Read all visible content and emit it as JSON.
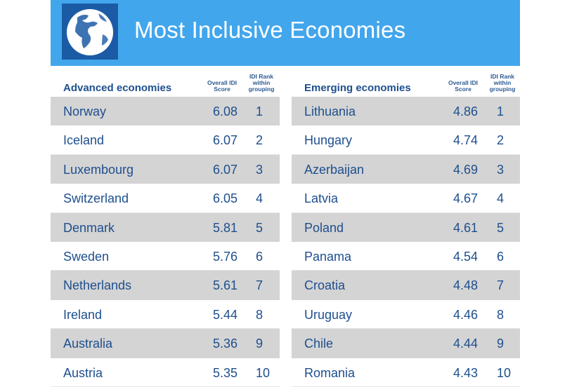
{
  "header": {
    "title": "Most Inclusive Economies",
    "icon": "globe-icon",
    "banner_color": "#42a6ec",
    "icon_bg_color": "#1b5ba6"
  },
  "advanced": {
    "heading": "Advanced economies",
    "col_score": "Overall IDI Score",
    "col_rank": "IDI Rank within grouping",
    "rows": [
      {
        "name": "Norway",
        "score": "6.08",
        "rank": "1"
      },
      {
        "name": "Iceland",
        "score": "6.07",
        "rank": "2"
      },
      {
        "name": "Luxembourg",
        "score": "6.07",
        "rank": "3"
      },
      {
        "name": "Switzerland",
        "score": "6.05",
        "rank": "4"
      },
      {
        "name": "Denmark",
        "score": "5.81",
        "rank": "5"
      },
      {
        "name": "Sweden",
        "score": "5.76",
        "rank": "6"
      },
      {
        "name": "Netherlands",
        "score": "5.61",
        "rank": "7"
      },
      {
        "name": "Ireland",
        "score": "5.44",
        "rank": "8"
      },
      {
        "name": "Australia",
        "score": "5.36",
        "rank": "9"
      },
      {
        "name": "Austria",
        "score": "5.35",
        "rank": "10"
      }
    ]
  },
  "emerging": {
    "heading": "Emerging economies",
    "col_score": "Overall IDI Score",
    "col_rank": "IDI Rank within grouping",
    "rows": [
      {
        "name": "Lithuania",
        "score": "4.86",
        "rank": "1"
      },
      {
        "name": "Hungary",
        "score": "4.74",
        "rank": "2"
      },
      {
        "name": "Azerbaijan",
        "score": "4.69",
        "rank": "3"
      },
      {
        "name": "Latvia",
        "score": "4.67",
        "rank": "4"
      },
      {
        "name": "Poland",
        "score": "4.61",
        "rank": "5"
      },
      {
        "name": "Panama",
        "score": "4.54",
        "rank": "6"
      },
      {
        "name": "Croatia",
        "score": "4.48",
        "rank": "7"
      },
      {
        "name": "Uruguay",
        "score": "4.46",
        "rank": "8"
      },
      {
        "name": "Chile",
        "score": "4.44",
        "rank": "9"
      },
      {
        "name": "Romania",
        "score": "4.43",
        "rank": "10"
      }
    ]
  }
}
